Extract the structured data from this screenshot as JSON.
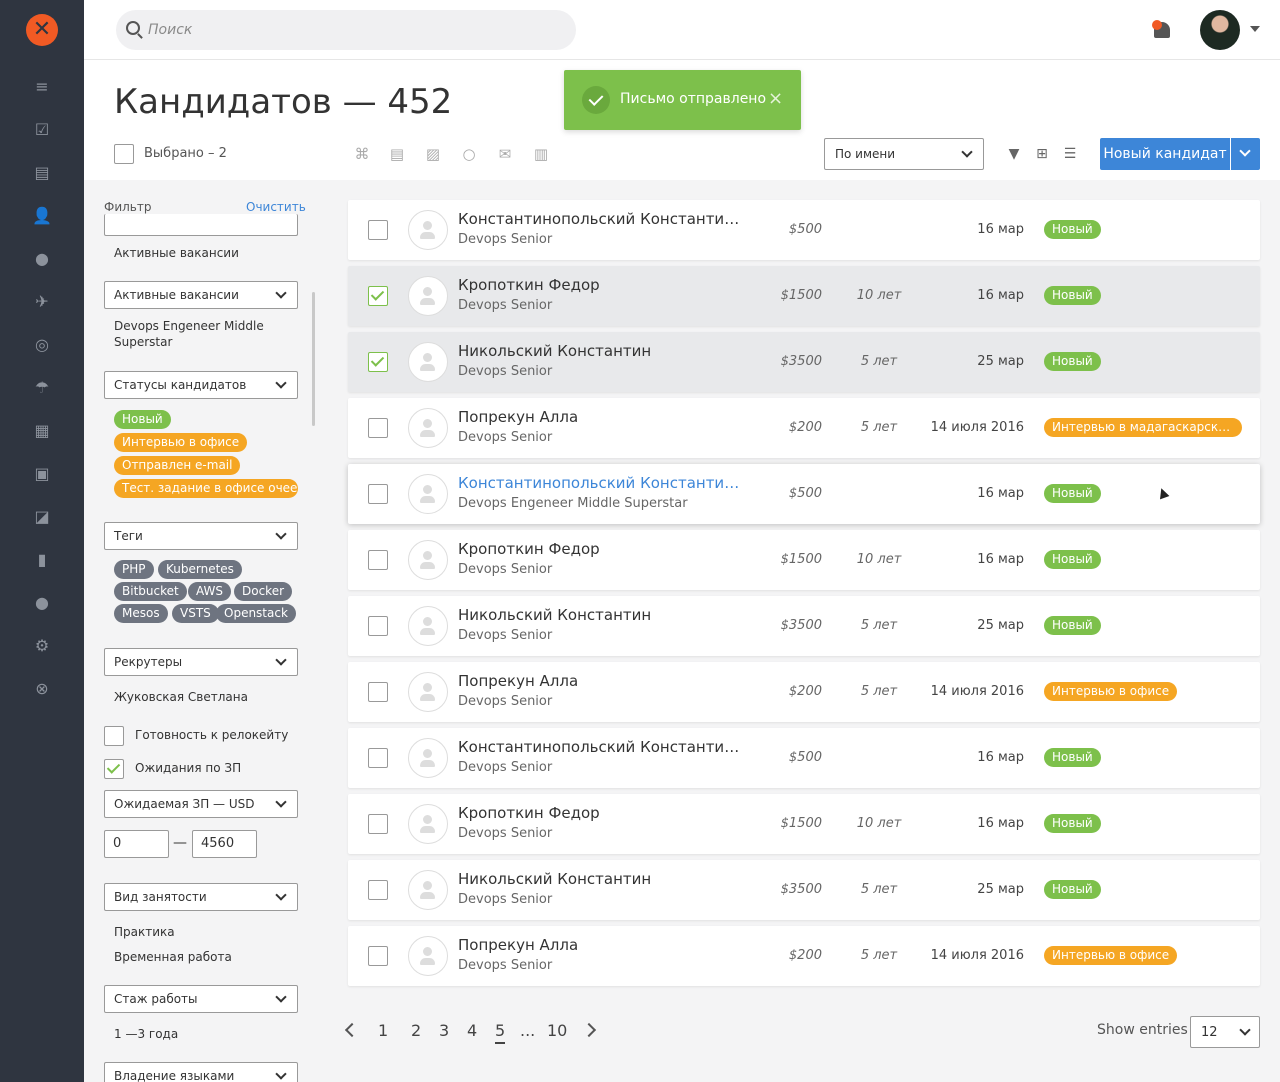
{
  "search": {
    "placeholder": "Поиск"
  },
  "header": {
    "title": "Кандидатов — 452",
    "selected_label": "Выбрано – 2",
    "sort_value": "По имени",
    "new_button": "Новый кандидат"
  },
  "toast": {
    "message": "Письмо отправлено",
    "close": "×"
  },
  "filter": {
    "title": "Фильтр",
    "clear": "Очистить",
    "vacancies_text": "Активные вакансии",
    "vacancies_select": "Активные вакансии",
    "vacancy_value": "Devops Engeneer Middle Superstar",
    "status_select": "Статусы кандидатов",
    "status_tags": [
      "Новый",
      "Интервью в офисе",
      "Отправлен e-mail",
      "Тест. задание в офисе очее..."
    ],
    "tags_select": "Теги",
    "tags": [
      "PHP",
      "Kubernetes",
      "Bitbucket",
      "AWS",
      "Docker",
      "Mesos",
      "VSTS",
      "Openstack"
    ],
    "recruiters_select": "Рекрутеры",
    "recruiter_value": "Жуковская Светлана",
    "relocate_label": "Готовность к релокейту",
    "salary_label": "Ожидания по ЗП",
    "salary_select": "Ожидаемая ЗП — USD",
    "salary_from": "0",
    "salary_dash": "—",
    "salary_to": "4560",
    "employment_select": "Вид занятости",
    "employment_values": [
      "Практика",
      "Временная работа"
    ],
    "experience_select": "Стаж работы",
    "experience_value": "1 —3 года",
    "languages_select": "Владение языками"
  },
  "rows": [
    {
      "name": "Константинопольский Константин К...",
      "position": "Devops Senior",
      "salary": "$500",
      "experience": "",
      "date": "16 мар",
      "status": "Новый",
      "status_color": "#7dc04b"
    },
    {
      "name": "Кропоткин Федор",
      "position": "Devops Senior",
      "salary": "$1500",
      "experience": "10 лет",
      "date": "16 мар",
      "status": "Новый",
      "status_color": "#7dc04b"
    },
    {
      "name": "Никольский Константин",
      "position": "Devops Senior",
      "salary": "$3500",
      "experience": "5 лет",
      "date": "25 мар",
      "status": "Новый",
      "status_color": "#7dc04b"
    },
    {
      "name": "Попрекун Алла",
      "position": "Devops Senior",
      "salary": "$200",
      "experience": "5 лет",
      "date": "14 июля 2016",
      "status": "Интервью в мадагаскарском о...",
      "status_color": "#f5a623"
    },
    {
      "name": "Константинопольский Константин К...",
      "position": "Devops Engeneer Middle Superstar",
      "salary": "$500",
      "experience": "",
      "date": "16 мар",
      "status": "Новый",
      "status_color": "#7dc04b"
    },
    {
      "name": "Кропоткин Федор",
      "position": "Devops Senior",
      "salary": "$1500",
      "experience": "10 лет",
      "date": "16 мар",
      "status": "Новый",
      "status_color": "#7dc04b"
    },
    {
      "name": "Никольский Константин",
      "position": "Devops Senior",
      "salary": "$3500",
      "experience": "5 лет",
      "date": "25 мар",
      "status": "Новый",
      "status_color": "#7dc04b"
    },
    {
      "name": "Попрекун Алла",
      "position": "Devops Senior",
      "salary": "$200",
      "experience": "5 лет",
      "date": "14 июля 2016",
      "status": "Интервью в офисе",
      "status_color": "#f5a623"
    },
    {
      "name": "Константинопольский Константин К...",
      "position": "Devops Senior",
      "salary": "$500",
      "experience": "",
      "date": "16 мар",
      "status": "Новый",
      "status_color": "#7dc04b"
    },
    {
      "name": "Кропоткин Федор",
      "position": "Devops Senior",
      "salary": "$1500",
      "experience": "10 лет",
      "date": "16 мар",
      "status": "Новый",
      "status_color": "#7dc04b"
    },
    {
      "name": "Никольский Константин",
      "position": "Devops Senior",
      "salary": "$3500",
      "experience": "5 лет",
      "date": "25 мар",
      "status": "Новый",
      "status_color": "#7dc04b"
    },
    {
      "name": "Попрекун Алла",
      "position": "Devops Senior",
      "salary": "$200",
      "experience": "5 лет",
      "date": "14 июля 2016",
      "status": "Интервью в офисе",
      "status_color": "#f5a623"
    }
  ],
  "pagination": {
    "pages": [
      "1",
      "2",
      "3",
      "4",
      "5",
      "...",
      "10"
    ],
    "current": "5",
    "show_label": "Show entries",
    "show_value": "12"
  }
}
